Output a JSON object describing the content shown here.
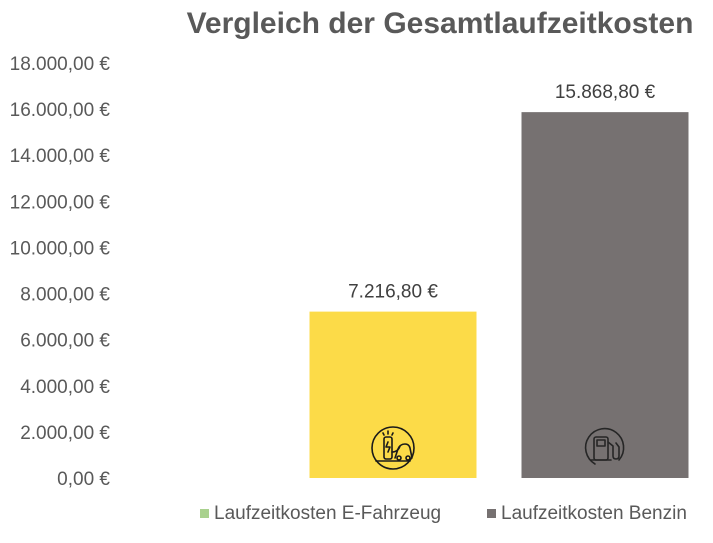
{
  "chart_data": {
    "type": "bar",
    "title": "Vergleich der Gesamtlaufzeitkosten",
    "categories": [
      "Laufzeitkosten E-Fahrzeug",
      "Laufzeitkosten Benzin"
    ],
    "values": [
      7216.8,
      15868.8
    ],
    "data_labels": [
      "7.216,80 €",
      "15.868,80 €"
    ],
    "bar_colors": [
      "#FCDB48",
      "#767171"
    ],
    "icons": [
      "ev-charger-car-icon",
      "fuel-pump-icon"
    ],
    "ylim": [
      0,
      18000
    ],
    "yticks": [
      0,
      2000,
      4000,
      6000,
      8000,
      10000,
      12000,
      14000,
      16000,
      18000
    ],
    "ytick_labels": [
      "0,00 €",
      "2.000,00 €",
      "4.000,00 €",
      "6.000,00 €",
      "8.000,00 €",
      "10.000,00 €",
      "12.000,00 €",
      "14.000,00 €",
      "16.000,00 €",
      "18.000,00 €"
    ],
    "legend": {
      "position": "bottom",
      "entries": [
        {
          "label": "Laufzeitkosten E-Fahrzeug",
          "color": "#A9D18E"
        },
        {
          "label": "Laufzeitkosten Benzin",
          "color": "#767171"
        }
      ]
    },
    "grid": false
  }
}
